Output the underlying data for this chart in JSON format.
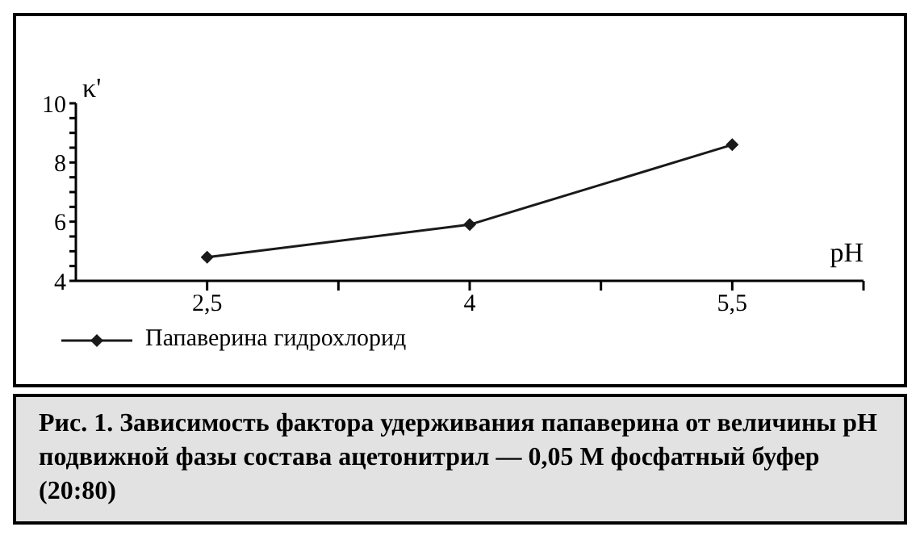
{
  "chart_data": {
    "type": "line",
    "xlabel": "pH",
    "ylabel": "κ'",
    "x": [
      2.5,
      4,
      5.5
    ],
    "series": [
      {
        "name": "Папаверина гидрохлорид",
        "color": "#1a1a1a",
        "values": [
          4.8,
          5.9,
          8.6
        ]
      }
    ],
    "xlim": [
      1.75,
      6.25
    ],
    "xticks": [
      {
        "value": 2.5,
        "label": "2,5"
      },
      {
        "value": 3.25,
        "label": null
      },
      {
        "value": 4,
        "label": "4"
      },
      {
        "value": 4.75,
        "label": null
      },
      {
        "value": 5.5,
        "label": "5,5"
      },
      {
        "value": 6.25,
        "label": null
      }
    ],
    "ylim": [
      4,
      10
    ],
    "yticks": [
      4,
      {
        "value": 4.5,
        "label": null
      },
      {
        "value": 5,
        "label": null
      },
      {
        "value": 5.5,
        "label": null
      },
      6,
      {
        "value": 6.5,
        "label": null
      },
      {
        "value": 7,
        "label": null
      },
      {
        "value": 7.5,
        "label": null
      },
      8,
      {
        "value": 8.5,
        "label": null
      },
      {
        "value": 9,
        "label": null
      },
      {
        "value": 9.5,
        "label": null
      },
      10
    ],
    "marker": "diamond",
    "legend": "bottom left",
    "annotations": [
      "Рис. 1. Зависимость фактора удерживания папаверина от величины pH подвижной фазы состава ацетонитрил — 0,05 М фосфатный буфер (20:80)"
    ]
  }
}
